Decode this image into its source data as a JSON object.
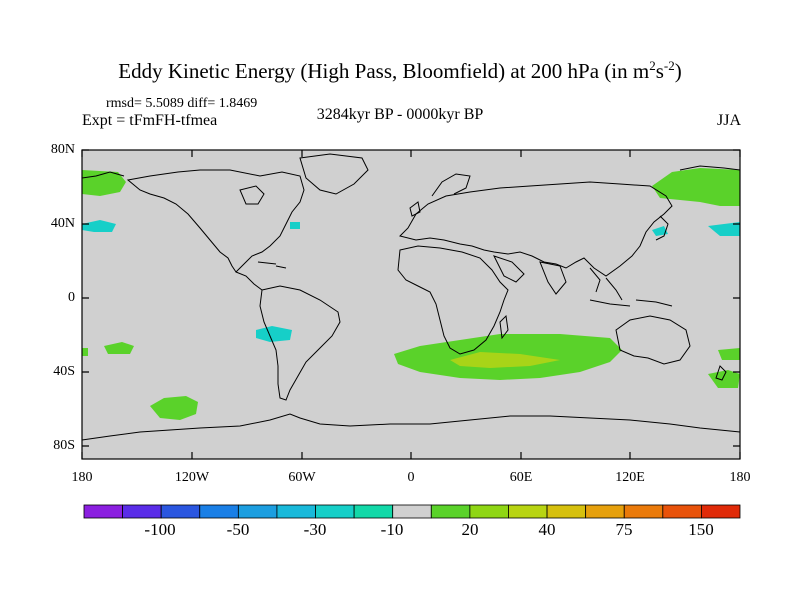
{
  "title": {
    "main": "Eddy Kinetic Energy (High Pass, Bloomfield) at 200 hPa (in m",
    "sup1": "2",
    "mid": "s",
    "sup2": "-2",
    "end": ")"
  },
  "stats": "rmsd= 5.5089 diff= 1.8469",
  "experiment": "Expt = tFmFH-tfmea",
  "period": "3284kyr BP - 0000kyr BP",
  "season": "JJA",
  "lat_labels": [
    "80N",
    "40N",
    "0",
    "40S",
    "80S"
  ],
  "lon_labels": [
    "180",
    "120W",
    "60W",
    "0",
    "60E",
    "120E",
    "180"
  ],
  "colorbar": {
    "labels": [
      "-100",
      "-50",
      "-30",
      "-10",
      "20",
      "40",
      "75",
      "150"
    ],
    "colors": [
      "#8b1fe0",
      "#5a2de8",
      "#2a56e0",
      "#1a7fe6",
      "#1c9ee0",
      "#19b9da",
      "#16cfc8",
      "#12d8a8",
      "#d0d0d0",
      "#5ad22a",
      "#8fd614",
      "#b8d412",
      "#d6c00e",
      "#e6a00c",
      "#ea7a0a",
      "#e8520a",
      "#e02a08"
    ]
  },
  "colors": {
    "land_ocean": "#d0d0d0",
    "positive_20": "#5ad22a",
    "positive_40": "#a8d418",
    "negative_10": "#16cfc8"
  },
  "icons": [
    "world-map-coastlines"
  ]
}
